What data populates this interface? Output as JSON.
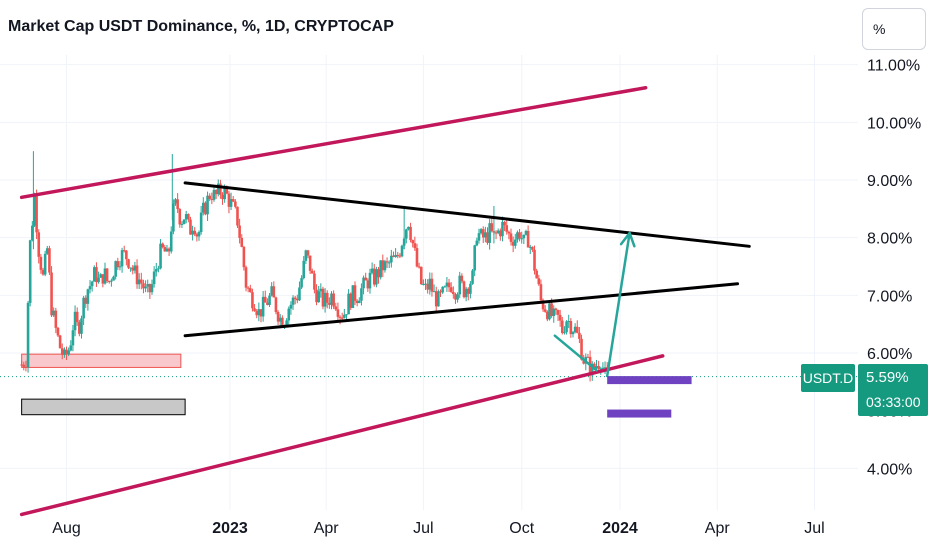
{
  "header": {
    "title": "Market Cap USDT Dominance, %, 1D, CRYPTOCAP",
    "unit_button": "%"
  },
  "price_label": {
    "symbol": "USDT.D",
    "value": "5.59%",
    "countdown": "03:33:00"
  },
  "colors": {
    "up": "#26a69a",
    "down": "#ef5350",
    "channel": "#c2185b",
    "triangle": "#000000",
    "arrow": "#26a69a",
    "target": "#6f42c1",
    "support_zone": "#f8c8cc",
    "grey_zone": "#c8c8c8",
    "tag": "#159a80"
  },
  "chart_data": {
    "type": "candlestick",
    "title": "Market Cap USDT Dominance, %, 1D, CRYPTOCAP",
    "y_ticks": [
      "11.00%",
      "10.00%",
      "9.00%",
      "8.00%",
      "7.00%",
      "6.00%",
      "4.00%"
    ],
    "y_tick_values": [
      11,
      10,
      9,
      8,
      7,
      6,
      4
    ],
    "x_ticks": [
      "Aug",
      "2023",
      "Apr",
      "Jul",
      "Oct",
      "2024",
      "Apr",
      "Jul"
    ],
    "x_tick_dates": [
      "2022-08-01",
      "2023-01-01",
      "2023-04-01",
      "2023-07-01",
      "2023-10-01",
      "2024-01-01",
      "2024-04-01",
      "2024-07-01"
    ],
    "bold_x_ticks": [
      "2023",
      "2024"
    ],
    "ylim": [
      3.5,
      11.2
    ],
    "last_value": 5.59,
    "grid": true,
    "close_path": [
      [
        "2022-06-20",
        5.8
      ],
      [
        "2022-06-24",
        5.9
      ],
      [
        "2022-06-28",
        7.9
      ],
      [
        "2022-07-02",
        8.7
      ],
      [
        "2022-07-06",
        7.8
      ],
      [
        "2022-07-10",
        7.3
      ],
      [
        "2022-07-14",
        7.8
      ],
      [
        "2022-07-18",
        6.8
      ],
      [
        "2022-07-22",
        6.4
      ],
      [
        "2022-07-26",
        6.1
      ],
      [
        "2022-07-30",
        5.9
      ],
      [
        "2022-08-04",
        6.1
      ],
      [
        "2022-08-08",
        6.6
      ],
      [
        "2022-08-12",
        6.4
      ],
      [
        "2022-08-16",
        6.8
      ],
      [
        "2022-08-20",
        7.1
      ],
      [
        "2022-08-24",
        7.2
      ],
      [
        "2022-08-28",
        7.4
      ],
      [
        "2022-09-01",
        7.2
      ],
      [
        "2022-09-05",
        7.4
      ],
      [
        "2022-09-09",
        7.2
      ],
      [
        "2022-09-13",
        7.4
      ],
      [
        "2022-09-17",
        7.6
      ],
      [
        "2022-09-21",
        7.7
      ],
      [
        "2022-09-25",
        7.7
      ],
      [
        "2022-09-29",
        7.6
      ],
      [
        "2022-10-03",
        7.4
      ],
      [
        "2022-10-07",
        7.3
      ],
      [
        "2022-10-11",
        7.2
      ],
      [
        "2022-10-15",
        7.0
      ],
      [
        "2022-10-19",
        7.1
      ],
      [
        "2022-10-23",
        7.4
      ],
      [
        "2022-10-27",
        7.7
      ],
      [
        "2022-10-31",
        7.8
      ],
      [
        "2022-11-04",
        7.6
      ],
      [
        "2022-11-08",
        8.4
      ],
      [
        "2022-11-12",
        8.6
      ],
      [
        "2022-11-16",
        8.3
      ],
      [
        "2022-11-20",
        8.4
      ],
      [
        "2022-11-24",
        8.1
      ],
      [
        "2022-11-28",
        8.3
      ],
      [
        "2022-12-02",
        8.0
      ],
      [
        "2022-12-06",
        8.4
      ],
      [
        "2022-12-10",
        8.6
      ],
      [
        "2022-12-14",
        8.8
      ],
      [
        "2022-12-18",
        8.7
      ],
      [
        "2022-12-22",
        8.8
      ],
      [
        "2022-12-26",
        8.8
      ],
      [
        "2022-12-30",
        8.7
      ],
      [
        "2023-01-04",
        8.5
      ],
      [
        "2023-01-08",
        8.3
      ],
      [
        "2023-01-12",
        7.8
      ],
      [
        "2023-01-16",
        7.2
      ],
      [
        "2023-01-20",
        7.0
      ],
      [
        "2023-01-24",
        6.9
      ],
      [
        "2023-01-28",
        6.7
      ],
      [
        "2023-02-01",
        6.8
      ],
      [
        "2023-02-05",
        6.9
      ],
      [
        "2023-02-09",
        7.0
      ],
      [
        "2023-02-13",
        6.8
      ],
      [
        "2023-02-17",
        6.6
      ],
      [
        "2023-02-21",
        6.6
      ],
      [
        "2023-02-25",
        6.8
      ],
      [
        "2023-03-01",
        6.9
      ],
      [
        "2023-03-05",
        7.0
      ],
      [
        "2023-03-09",
        7.3
      ],
      [
        "2023-03-13",
        7.7
      ],
      [
        "2023-03-17",
        7.5
      ],
      [
        "2023-03-21",
        7.1
      ],
      [
        "2023-03-25",
        7.0
      ],
      [
        "2023-03-29",
        6.9
      ],
      [
        "2023-04-02",
        6.9
      ],
      [
        "2023-04-06",
        7.0
      ],
      [
        "2023-04-10",
        6.9
      ],
      [
        "2023-04-14",
        6.7
      ],
      [
        "2023-04-18",
        6.7
      ],
      [
        "2023-04-22",
        6.9
      ],
      [
        "2023-04-26",
        7.0
      ],
      [
        "2023-04-30",
        7.0
      ],
      [
        "2023-05-04",
        7.1
      ],
      [
        "2023-05-08",
        7.2
      ],
      [
        "2023-05-12",
        7.3
      ],
      [
        "2023-05-16",
        7.3
      ],
      [
        "2023-05-20",
        7.4
      ],
      [
        "2023-05-24",
        7.5
      ],
      [
        "2023-05-28",
        7.5
      ],
      [
        "2023-06-01",
        7.6
      ],
      [
        "2023-06-05",
        7.6
      ],
      [
        "2023-06-09",
        7.8
      ],
      [
        "2023-06-13",
        8.1
      ],
      [
        "2023-06-17",
        8.3
      ],
      [
        "2023-06-21",
        7.9
      ],
      [
        "2023-06-25",
        7.5
      ],
      [
        "2023-06-29",
        7.2
      ],
      [
        "2023-07-03",
        7.1
      ],
      [
        "2023-07-07",
        7.2
      ],
      [
        "2023-07-11",
        7.0
      ],
      [
        "2023-07-15",
        6.9
      ],
      [
        "2023-07-19",
        7.0
      ],
      [
        "2023-07-23",
        7.1
      ],
      [
        "2023-07-27",
        7.2
      ],
      [
        "2023-07-31",
        7.1
      ],
      [
        "2023-08-04",
        7.2
      ],
      [
        "2023-08-08",
        7.1
      ],
      [
        "2023-08-12",
        7.2
      ],
      [
        "2023-08-16",
        7.3
      ],
      [
        "2023-08-20",
        8.1
      ],
      [
        "2023-08-24",
        8.0
      ],
      [
        "2023-08-28",
        8.0
      ],
      [
        "2023-09-01",
        8.1
      ],
      [
        "2023-09-05",
        8.0
      ],
      [
        "2023-09-09",
        8.1
      ],
      [
        "2023-09-13",
        8.2
      ],
      [
        "2023-09-17",
        8.1
      ],
      [
        "2023-09-21",
        8.0
      ],
      [
        "2023-09-25",
        8.0
      ],
      [
        "2023-09-29",
        8.1
      ],
      [
        "2023-10-03",
        7.9
      ],
      [
        "2023-10-07",
        8.0
      ],
      [
        "2023-10-11",
        7.7
      ],
      [
        "2023-10-15",
        7.3
      ],
      [
        "2023-10-19",
        6.9
      ],
      [
        "2023-10-23",
        6.8
      ],
      [
        "2023-10-27",
        6.7
      ],
      [
        "2023-10-31",
        6.6
      ],
      [
        "2023-11-04",
        6.6
      ],
      [
        "2023-11-08",
        6.4
      ],
      [
        "2023-11-12",
        6.6
      ],
      [
        "2023-11-16",
        6.5
      ],
      [
        "2023-11-20",
        6.4
      ],
      [
        "2023-11-24",
        6.2
      ],
      [
        "2023-11-28",
        5.9
      ],
      [
        "2023-12-02",
        5.8
      ],
      [
        "2023-12-06",
        5.7
      ],
      [
        "2023-12-10",
        5.8
      ],
      [
        "2023-12-14",
        5.9
      ],
      [
        "2023-12-18",
        5.6
      ],
      [
        "2023-12-20",
        5.59
      ]
    ]
  },
  "drawings": {
    "upper_channel": [
      [
        "2022-06-20",
        8.7
      ],
      [
        "2024-01-25",
        10.6
      ]
    ],
    "lower_channel": [
      [
        "2022-06-20",
        3.2
      ],
      [
        "2024-02-10",
        5.95
      ]
    ],
    "triangle_upper": [
      [
        "2022-11-20",
        8.95
      ],
      [
        "2024-05-01",
        7.85
      ]
    ],
    "triangle_lower": [
      [
        "2022-11-20",
        6.3
      ],
      [
        "2024-04-20",
        7.2
      ]
    ],
    "projection_arrow": [
      [
        "2023-12-20",
        5.6
      ],
      [
        "2024-01-10",
        8.08
      ]
    ],
    "decline_path": [
      [
        "2023-11-01",
        6.3
      ],
      [
        "2023-12-10",
        5.7
      ]
    ],
    "target_bars": [
      {
        "from": "2023-12-20",
        "to": "2024-03-08",
        "value": 5.53
      },
      {
        "from": "2023-12-20",
        "to": "2024-02-18",
        "value": 4.95
      }
    ],
    "zones": [
      {
        "from": "2022-06-20",
        "to": "2022-11-16",
        "top": 5.98,
        "bottom": 5.75
      },
      {
        "from": "2022-06-20",
        "to": "2022-11-20",
        "top": 5.2,
        "bottom": 4.93
      }
    ],
    "current_line": 5.59
  }
}
